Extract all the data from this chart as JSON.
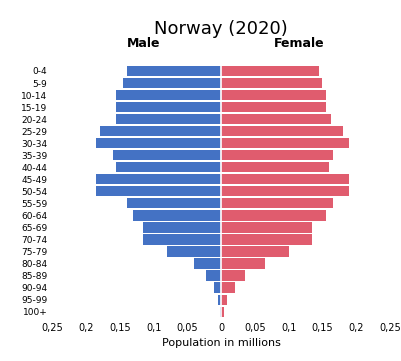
{
  "title": "Norway (2020)",
  "age_groups": [
    "100+",
    "95-99",
    "90-94",
    "85-89",
    "80-84",
    "75-79",
    "70-74",
    "65-69",
    "60-64",
    "55-59",
    "50-54",
    "45-49",
    "40-44",
    "35-39",
    "30-34",
    "25-29",
    "20-24",
    "15-19",
    "10-14",
    "5-9",
    "0-4"
  ],
  "male": [
    0.001,
    0.004,
    0.01,
    0.023,
    0.04,
    0.08,
    0.115,
    0.115,
    0.13,
    0.14,
    0.185,
    0.185,
    0.155,
    0.16,
    0.185,
    0.18,
    0.155,
    0.155,
    0.155,
    0.145,
    0.14
  ],
  "female": [
    0.004,
    0.009,
    0.02,
    0.035,
    0.065,
    0.1,
    0.135,
    0.135,
    0.155,
    0.165,
    0.19,
    0.19,
    0.16,
    0.165,
    0.19,
    0.18,
    0.162,
    0.155,
    0.155,
    0.15,
    0.145
  ],
  "male_color": "#4472c4",
  "female_color": "#e05c6e",
  "xlabel": "Population in millions",
  "xlim": 0.25,
  "xtick_labels": [
    "0,25",
    "0,2",
    "0,15",
    "0,1",
    "0,05",
    "0",
    "0,05",
    "0,1",
    "0,15",
    "0,2",
    "0,25"
  ],
  "male_label": "Male",
  "female_label": "Female",
  "background_color": "#ffffff",
  "bar_height": 0.85
}
